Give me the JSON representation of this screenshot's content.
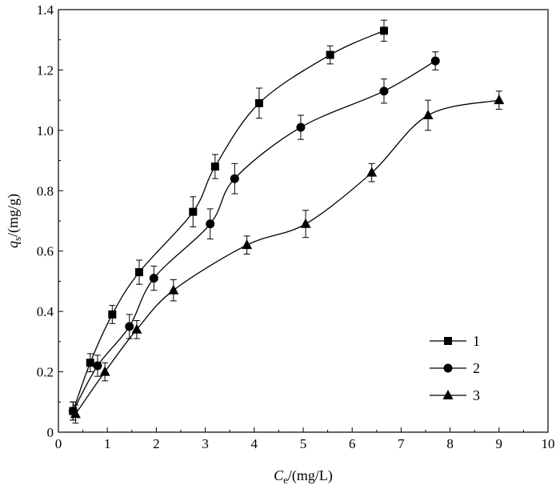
{
  "chart_data": {
    "type": "scatter",
    "xlabel": "Ce/(mg/L)",
    "ylabel": "qs/(mg/g)",
    "xlabel_parts": {
      "main": "C",
      "sub": "e",
      "unit": "/(mg/L)"
    },
    "ylabel_parts": {
      "main": "q",
      "sub": "s",
      "unit": "/(mg/g)"
    },
    "xlim": [
      0,
      10
    ],
    "ylim": [
      0,
      1.4
    ],
    "xticks": [
      0,
      1,
      2,
      3,
      4,
      5,
      6,
      7,
      8,
      9,
      10
    ],
    "yticks": [
      0,
      0.2,
      0.4,
      0.6,
      0.8,
      1.0,
      1.2,
      1.4
    ],
    "ytick_labels": [
      "0",
      "0.2",
      "0.4",
      "0.6",
      "0.8",
      "1.0",
      "1.2",
      "1.4"
    ],
    "grid": false,
    "legend_position": "lower-right",
    "series": [
      {
        "name": "1",
        "marker": "square",
        "x": [
          0.3,
          0.65,
          1.1,
          1.65,
          2.75,
          3.2,
          4.1,
          5.55,
          6.65
        ],
        "y": [
          0.07,
          0.23,
          0.39,
          0.53,
          0.73,
          0.88,
          1.09,
          1.25,
          1.33
        ],
        "err": [
          0.03,
          0.03,
          0.03,
          0.04,
          0.05,
          0.04,
          0.05,
          0.03,
          0.035
        ]
      },
      {
        "name": "2",
        "marker": "circle",
        "x": [
          0.3,
          0.8,
          1.45,
          1.95,
          3.1,
          3.6,
          4.95,
          6.65,
          7.7
        ],
        "y": [
          0.07,
          0.22,
          0.35,
          0.51,
          0.69,
          0.84,
          1.01,
          1.13,
          1.23
        ],
        "err": [
          0.03,
          0.035,
          0.04,
          0.04,
          0.05,
          0.05,
          0.04,
          0.04,
          0.03
        ]
      },
      {
        "name": "3",
        "marker": "triangle",
        "x": [
          0.35,
          0.95,
          1.6,
          2.35,
          3.85,
          5.05,
          6.4,
          7.55,
          9.0
        ],
        "y": [
          0.06,
          0.2,
          0.34,
          0.47,
          0.62,
          0.69,
          0.86,
          1.05,
          1.1
        ],
        "err": [
          0.03,
          0.03,
          0.03,
          0.035,
          0.03,
          0.045,
          0.03,
          0.05,
          0.03
        ]
      }
    ]
  }
}
